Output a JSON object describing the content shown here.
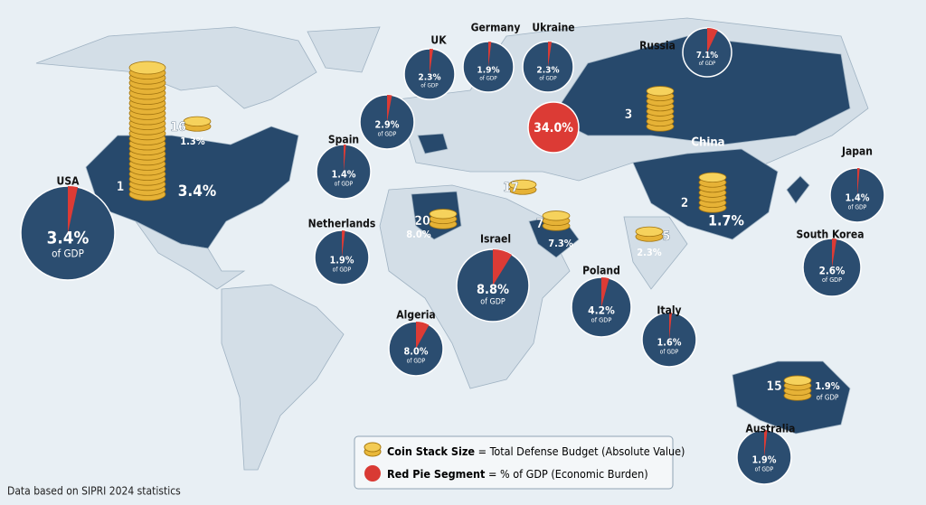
{
  "pies": [
    {
      "name": "USA",
      "value": 3.4,
      "label": "3.4%",
      "sub": "of GDP"
    },
    {
      "name": "UK",
      "value": 2.3,
      "label": "2.3%",
      "sub": "of GDP"
    },
    {
      "name": "Germany",
      "value": 1.9,
      "label": "1.9%",
      "sub": "of GDP"
    },
    {
      "name": "Ukraine",
      "value": 2.3,
      "label": "2.3%",
      "sub": "of GDP"
    },
    {
      "name": "Russia",
      "value": 7.1,
      "label": "7.1%",
      "sub": "of GDP"
    },
    {
      "value": 2.9,
      "label": "2.9%",
      "sub": "of GDP"
    },
    {
      "name": "Spain",
      "value": 1.4,
      "label": "1.4%",
      "sub": "of GDP"
    },
    {
      "name": "Netherlands",
      "value": 1.9,
      "label": "1.9%",
      "sub": "of GDP"
    },
    {
      "name": "Israel",
      "value": 8.8,
      "label": "8.8%",
      "sub": "of GDP"
    },
    {
      "name": "Poland",
      "value": 4.2,
      "label": "4.2%",
      "sub": "of GDP"
    },
    {
      "name": "Algeria",
      "value": 8.0,
      "label": "8.0%",
      "sub": "of GDP"
    },
    {
      "name": "Italy",
      "value": 1.6,
      "label": "1.6%",
      "sub": "of GDP"
    },
    {
      "name": "Japan",
      "value": 1.4,
      "label": "1.4%",
      "sub": "of GDP"
    },
    {
      "name": "South Korea",
      "value": 2.6,
      "label": "2.6%",
      "sub": "of GDP"
    },
    {
      "name": "Australia",
      "value": 1.9,
      "label": "1.9%",
      "sub": "of GDP"
    }
  ],
  "badge": "34.0%",
  "stacks": [
    {
      "rank": 1,
      "label": "3.4%"
    },
    {
      "rank": 16,
      "label": "1.3%"
    },
    {
      "rank": 3
    },
    {
      "rank": 2,
      "label": "1.7%",
      "name": "China"
    },
    {
      "rank": 20,
      "label": "8.0%"
    },
    {
      "rank": 7,
      "label": "7.3%"
    },
    {
      "rank": 5,
      "label": "2.3%"
    },
    {
      "rank": 17
    },
    {
      "rank": 15,
      "label": "1.9%",
      "sub": "of GDP"
    }
  ],
  "legend": {
    "coin_bold": "Coin Stack Size",
    "coin_text": "= Total Defense Budget (Absolute Value)",
    "pie_bold": "Red Pie Segment",
    "pie_text": "= % of GDP (Economic Burden)"
  },
  "footer": "Data based on SIPRI 2024 statistics"
}
